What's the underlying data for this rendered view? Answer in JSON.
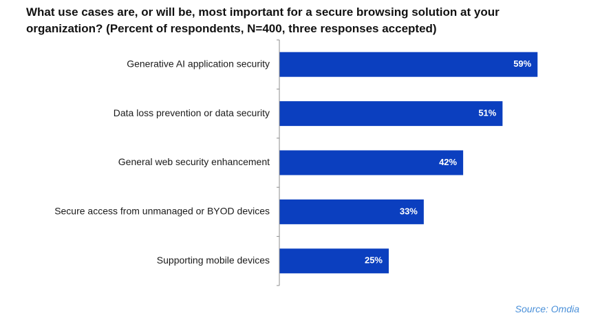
{
  "title": "What use cases are, or will be, most important for a secure browsing solution at your\norganization? (Percent of respondents, N=400, three responses accepted)",
  "source": "Source: Omdia",
  "colors": {
    "bar": "#0b3fbf",
    "axis": "#8c8c8c",
    "label": "#1a1a1a",
    "source": "#4a90d9"
  },
  "chart_data": {
    "type": "bar",
    "orientation": "horizontal",
    "categories": [
      "Generative AI application security",
      "Data loss prevention or data security",
      "General web security enhancement",
      "Secure access from unmanaged or BYOD devices",
      "Supporting mobile devices"
    ],
    "values": [
      59,
      51,
      42,
      33,
      25
    ],
    "value_labels": [
      "59%",
      "51%",
      "42%",
      "33%",
      "25%"
    ],
    "xlim": [
      0,
      100
    ],
    "grid": false,
    "legend": "none"
  }
}
